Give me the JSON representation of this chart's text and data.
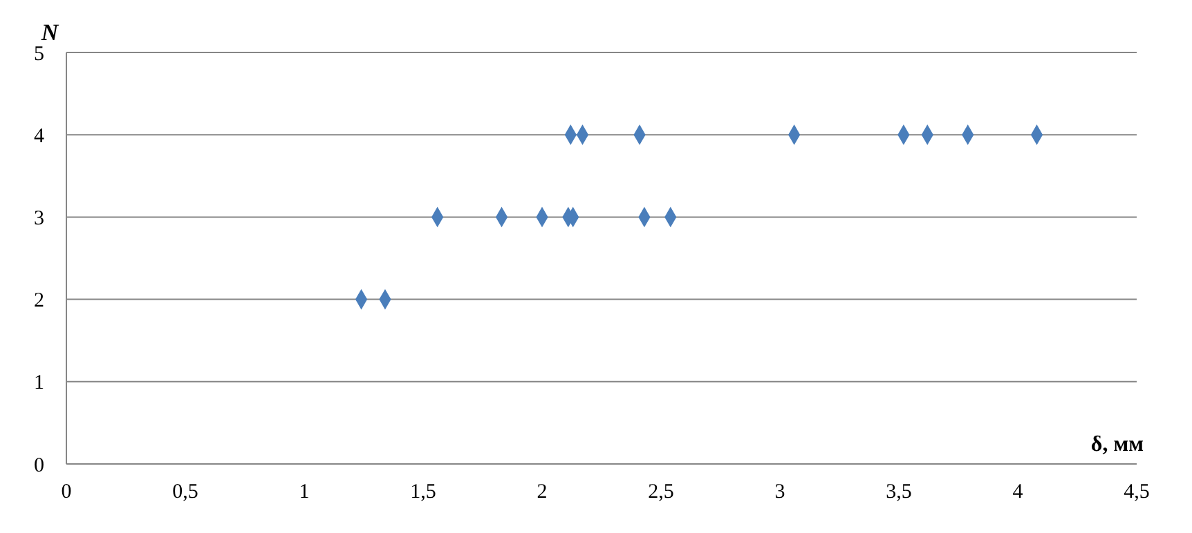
{
  "chart_data": {
    "type": "scatter",
    "xlabel": "δ, мм",
    "ylabel": "N",
    "series": [
      {
        "color": "#4a7ebb",
        "x": [
          1.24,
          1.34,
          1.56,
          1.83,
          2.0,
          2.11,
          2.13,
          2.43,
          2.54,
          2.12,
          2.17,
          2.41,
          3.06,
          3.52,
          3.62,
          3.79,
          4.08
        ],
        "values": [
          2,
          2,
          3,
          3,
          3,
          3,
          3,
          3,
          3,
          4,
          4,
          4,
          4,
          4,
          4,
          4,
          4
        ]
      }
    ],
    "xlim": [
      0,
      4.5
    ],
    "xticks": [
      0,
      {
        "value": 0.5,
        "label": "0,5"
      },
      1,
      {
        "value": 1.5,
        "label": "1,5"
      },
      2,
      {
        "value": 2.5,
        "label": "2,5"
      },
      3,
      {
        "value": 3.5,
        "label": "3,5"
      },
      4,
      {
        "value": 4.5,
        "label": "4,5"
      }
    ],
    "ylim": [
      0,
      5
    ],
    "yticks": [
      0,
      1,
      2,
      3,
      4,
      5
    ],
    "grid": "y",
    "marker": "diamond",
    "legend": false
  }
}
